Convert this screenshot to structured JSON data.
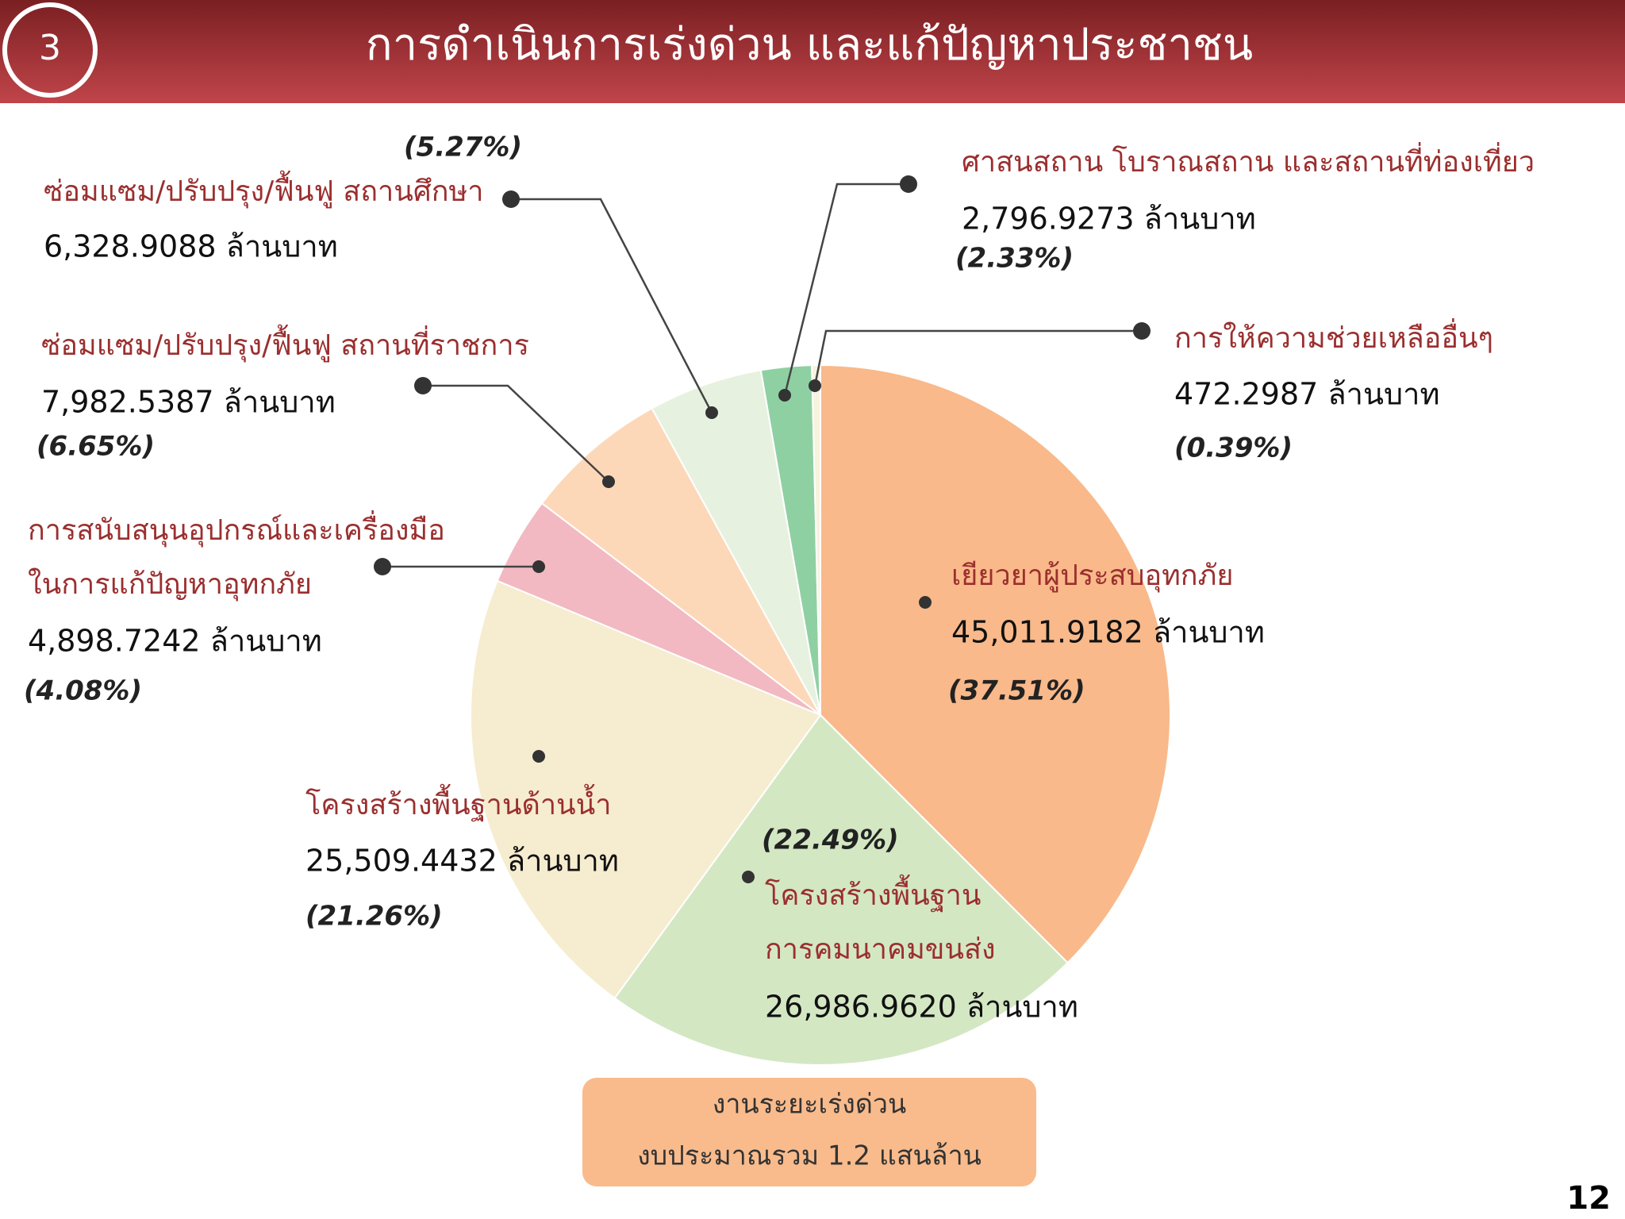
{
  "chart_data": {
    "type": "pie",
    "title": "การดำเนินการเร่งด่วน และแก้ปัญหาประชาชน",
    "section_number": 3,
    "page_number": 12,
    "note": [
      "งานระยะเร่งด่วน",
      "งบประมาณรวม 1.2 แสนล้าน"
    ],
    "categories": [
      "เยียวยาผู้ประสบอุทกภัย",
      "โครงสร้างพื้นฐาน\nการคมนาคมขนส่ง",
      "โครงสร้างพื้นฐานด้านน้ำ",
      "การสนับสนุนอุปกรณ์และเครื่องมือ\nในการแก้ปัญหาอุทกภัย",
      "ซ่อมแซม/ปรับปรุง/ฟื้นฟู สถานที่ราชการ",
      "ซ่อมแซม/ปรับปรุง/ฟื้นฟู สถานศึกษา",
      "ศาสนสถาน โบราณสถาน และสถานที่ท่องเที่ยว",
      "การให้ความช่วยเหลืออื่นๆ"
    ],
    "values": [
      45011.9182,
      26986.962,
      25509.4432,
      4898.7242,
      7982.5387,
      6328.9088,
      2796.9273,
      472.2987
    ],
    "value_labels": [
      "45,011.9182 ล้านบาท",
      "26,986.9620 ล้านบาท",
      "25,509.4432 ล้านบาท",
      "4,898.7242 ล้านบาท",
      "7,982.5387 ล้านบาท",
      "6,328.9088 ล้านบาท",
      "2,796.9273 ล้านบาท",
      "472.2987 ล้านบาท"
    ],
    "percent_labels": [
      "(37.51%)",
      "(22.49%)",
      "(21.26%)",
      "(4.08%)",
      "(6.65%)",
      "(5.27%)",
      "(2.33%)",
      "(0.39%)"
    ],
    "colors": [
      "#f9b98a",
      "#d3e7c3",
      "#f6eccf",
      "#f2b9c2",
      "#fcd8b9",
      "#e7f1df",
      "#8fd0a2",
      "#f8f3dc"
    ]
  }
}
